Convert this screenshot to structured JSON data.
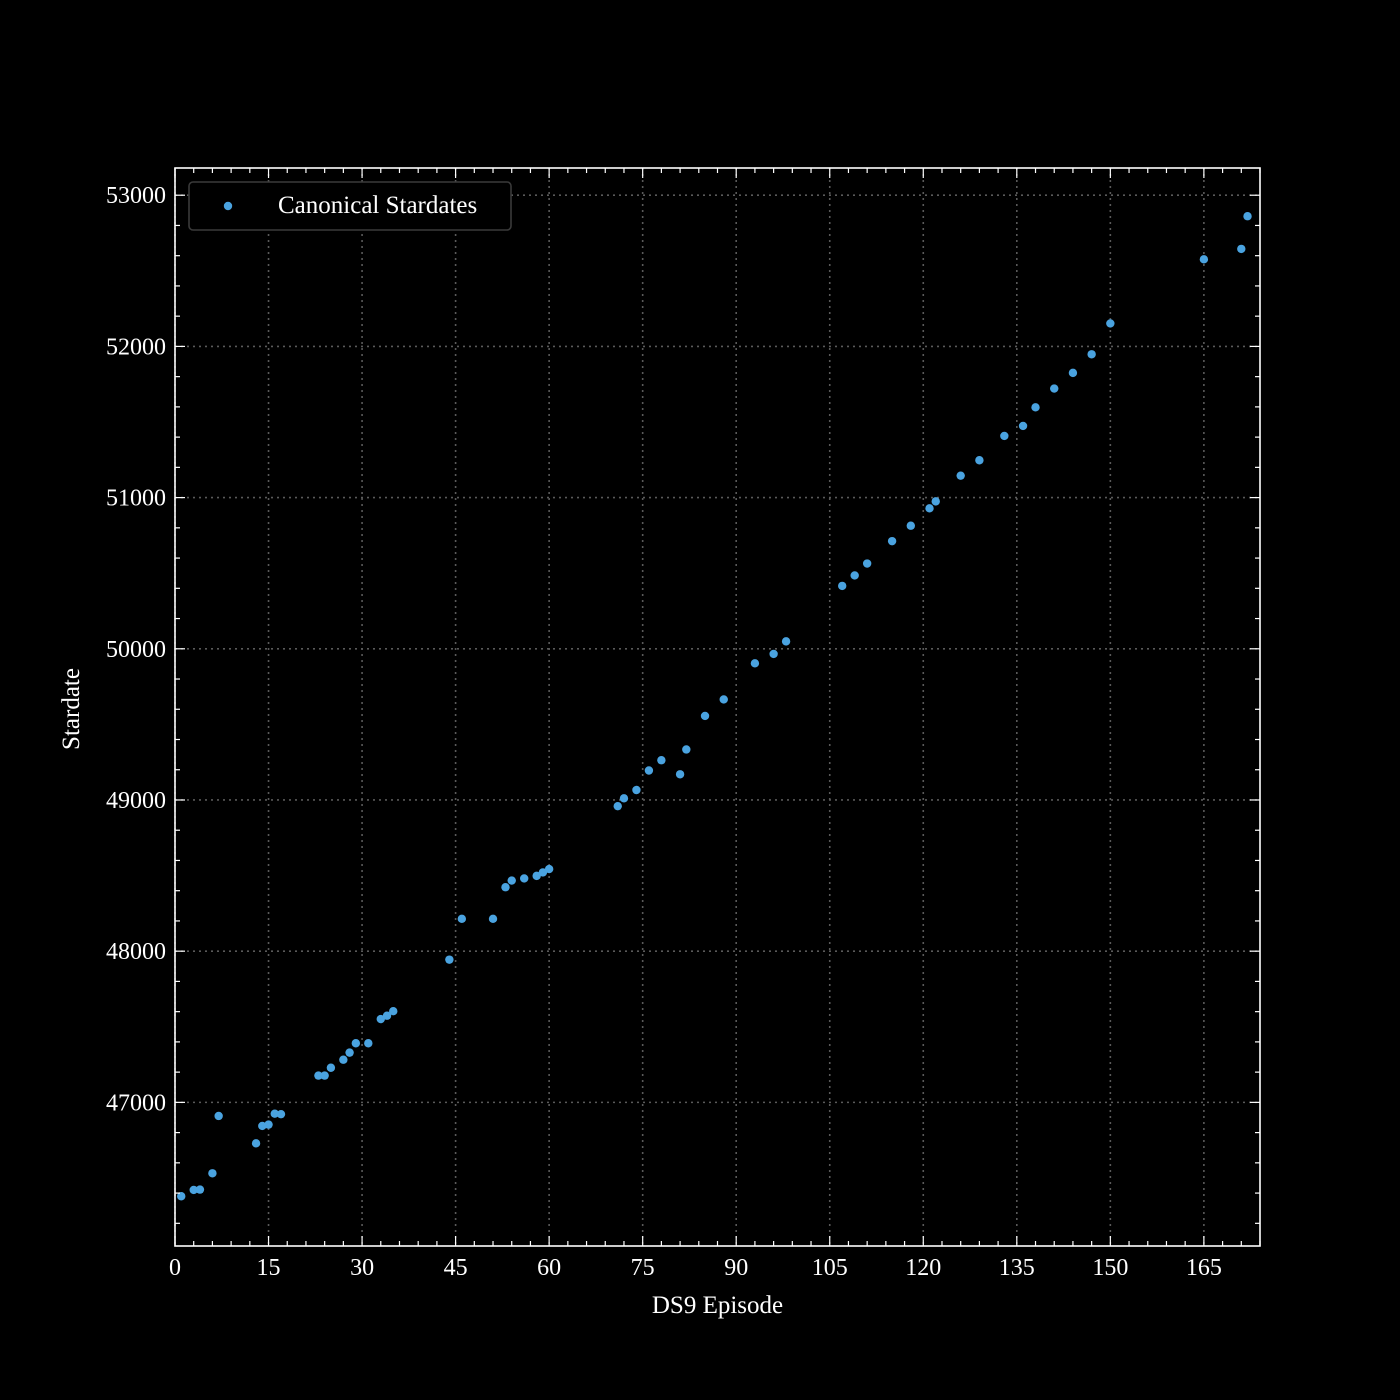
{
  "chart_data": {
    "type": "scatter",
    "title": "",
    "xlabel": "DS9 Episode",
    "ylabel": "Stardate",
    "xlim": [
      0,
      174
    ],
    "ylim": [
      46050,
      53180
    ],
    "xticks": [
      0,
      15,
      30,
      45,
      60,
      75,
      90,
      105,
      120,
      135,
      150,
      165
    ],
    "yticks": [
      47000,
      48000,
      49000,
      50000,
      51000,
      52000,
      53000
    ],
    "grid": true,
    "legend_position": "top-left",
    "series": [
      {
        "name": "Canonical Stardates",
        "color": "#4aa3e0",
        "points": [
          [
            1,
            46379
          ],
          [
            3,
            46421
          ],
          [
            4,
            46423
          ],
          [
            6,
            46531
          ],
          [
            7,
            46910
          ],
          [
            13,
            46729
          ],
          [
            14,
            46844
          ],
          [
            15,
            46853
          ],
          [
            16,
            46925
          ],
          [
            17,
            46922
          ],
          [
            23,
            47177
          ],
          [
            24,
            47177
          ],
          [
            25,
            47229
          ],
          [
            27,
            47282
          ],
          [
            28,
            47329
          ],
          [
            29,
            47391
          ],
          [
            31,
            47391
          ],
          [
            33,
            47551
          ],
          [
            34,
            47573
          ],
          [
            35,
            47603
          ],
          [
            44,
            47944
          ],
          [
            46,
            48214
          ],
          [
            51,
            48214
          ],
          [
            53,
            48423
          ],
          [
            54,
            48467
          ],
          [
            56,
            48481
          ],
          [
            58,
            48498
          ],
          [
            59,
            48521
          ],
          [
            60,
            48543
          ],
          [
            71,
            48959
          ],
          [
            72,
            49011
          ],
          [
            74,
            49066
          ],
          [
            76,
            49195
          ],
          [
            78,
            49263
          ],
          [
            81,
            49170
          ],
          [
            82,
            49334
          ],
          [
            85,
            49556
          ],
          [
            88,
            49665
          ],
          [
            93,
            49904
          ],
          [
            96,
            49966
          ],
          [
            98,
            50049
          ],
          [
            107,
            50416
          ],
          [
            109,
            50485
          ],
          [
            111,
            50564
          ],
          [
            115,
            50712
          ],
          [
            118,
            50814
          ],
          [
            121,
            50929
          ],
          [
            122,
            50975
          ],
          [
            126,
            51145
          ],
          [
            129,
            51247
          ],
          [
            133,
            51408
          ],
          [
            136,
            51474
          ],
          [
            138,
            51597
          ],
          [
            141,
            51721
          ],
          [
            144,
            51825
          ],
          [
            147,
            51948
          ],
          [
            150,
            52152
          ],
          [
            165,
            52576
          ],
          [
            171,
            52645
          ],
          [
            172,
            52861
          ]
        ]
      }
    ]
  }
}
